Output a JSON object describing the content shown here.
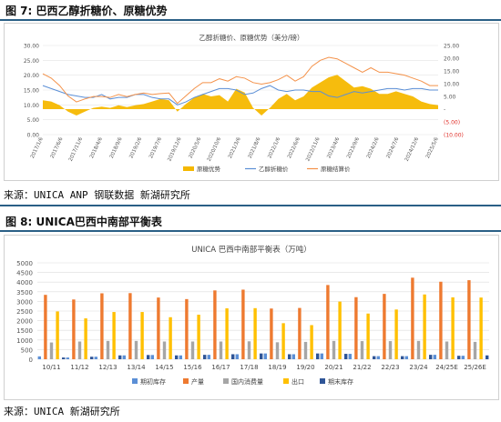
{
  "fig7": {
    "caption": "图 7: 巴西乙醇折糖价、原糖优势",
    "source": "来源：UNICA ANP 钢联数据 新湖研究所",
    "chart_data": {
      "type": "area+line",
      "title": "乙醇折糖价、原糖优势（美分/磅）",
      "x_ticks": [
        "2017/1/6",
        "2017/6/6",
        "2017/11/6",
        "2018/4/6",
        "2018/9/6",
        "2019/2/6",
        "2019/7/6",
        "2019/12/6",
        "2020/5/6",
        "2020/10/6",
        "2021/3/6",
        "2021/8/6",
        "2022/1/6",
        "2022/6/6",
        "2022/11/6",
        "2023/4/6",
        "2023/9/6",
        "2024/2/6",
        "2024/7/6",
        "2024/12/6",
        "2025/5/6"
      ],
      "left_ticks": [
        "0.00",
        "5.00",
        "10.00",
        "15.00",
        "20.00",
        "25.00",
        "30.00"
      ],
      "right_ticks": [
        "25.00",
        "20.00",
        "15.00",
        "10.00",
        "5.00",
        "-",
        "(5.00)",
        "(10.00)"
      ],
      "left_range": [
        0,
        30
      ],
      "right_range": [
        -10,
        25
      ],
      "series": [
        {
          "name": "原糖优势",
          "color": "#f5b800",
          "axis": "right",
          "values": [
            3.5,
            3.0,
            1.5,
            -1.0,
            -2.5,
            -1.0,
            0.5,
            1.0,
            0.5,
            1.5,
            0.8,
            1.5,
            2.0,
            3.0,
            4.0,
            3.5,
            -1.0,
            2.0,
            4.5,
            6.0,
            5.0,
            5.5,
            3.0,
            8.0,
            6.5,
            0.5,
            -2.5,
            0.5,
            4.0,
            6.0,
            3.5,
            5.0,
            8.5,
            10.5,
            12.5,
            13.5,
            11.0,
            8.5,
            9.0,
            8.0,
            6.0,
            6.0,
            7.0,
            6.0,
            5.0,
            3.0,
            2.0,
            1.5
          ]
        },
        {
          "name": "乙醇折糖价",
          "color": "#5b8fd6",
          "axis": "left",
          "values": [
            16.5,
            15.5,
            14.5,
            13.5,
            13.0,
            12.5,
            12.5,
            13.5,
            12.0,
            12.5,
            12.5,
            13.5,
            13.5,
            12.5,
            12.0,
            12.0,
            10.0,
            11.0,
            12.5,
            13.5,
            14.5,
            15.5,
            15.5,
            15.0,
            13.5,
            14.0,
            15.5,
            16.5,
            15.0,
            14.5,
            15.0,
            15.0,
            14.5,
            14.5,
            13.0,
            12.5,
            13.5,
            14.5,
            14.0,
            14.5,
            15.0,
            15.5,
            15.5,
            15.0,
            15.5,
            15.5,
            15.0,
            15.0
          ]
        },
        {
          "name": "原糖结算价",
          "color": "#f4924a",
          "axis": "left",
          "values": [
            20.5,
            19.0,
            16.5,
            13.0,
            11.0,
            12.0,
            12.8,
            12.8,
            12.5,
            13.5,
            12.8,
            13.5,
            14.0,
            13.5,
            13.8,
            14.0,
            10.5,
            13.0,
            15.5,
            17.5,
            17.5,
            18.8,
            18.0,
            19.5,
            19.0,
            17.5,
            17.0,
            17.5,
            18.5,
            20.0,
            18.0,
            19.5,
            23.0,
            25.0,
            26.0,
            25.5,
            24.0,
            22.5,
            21.0,
            22.5,
            21.0,
            21.0,
            20.5,
            20.0,
            19.0,
            18.0,
            16.5,
            16.5
          ]
        }
      ]
    }
  },
  "fig8": {
    "caption": "图 8: UNICA巴西中南部平衡表",
    "source": "来源：UNICA 新湖研究所",
    "chart_data": {
      "type": "bar",
      "title": "UNICA 巴西中南部平衡表（万吨）",
      "categories": [
        "10/11",
        "11/12",
        "12/13",
        "13/14",
        "14/15",
        "15/16",
        "16/17",
        "17/18",
        "18/19",
        "19/20",
        "20/21",
        "21/22",
        "22/23",
        "23/24",
        "24/25E",
        "25/26E"
      ],
      "y_ticks": [
        "0",
        "500",
        "1000",
        "1500",
        "2000",
        "2500",
        "3000",
        "3500",
        "4000",
        "4500",
        "5000"
      ],
      "ylim": [
        0,
        5000
      ],
      "series": [
        {
          "name": "期初库存",
          "color": "#5b8fd6",
          "values": [
            150,
            90,
            130,
            200,
            220,
            200,
            230,
            260,
            300,
            260,
            300,
            280,
            160,
            160,
            230,
            180
          ]
        },
        {
          "name": "产量",
          "color": "#ee7a30",
          "values": [
            3340,
            3100,
            3420,
            3430,
            3200,
            3120,
            3570,
            3610,
            2630,
            2660,
            3850,
            3220,
            3390,
            4230,
            4020,
            4100
          ]
        },
        {
          "name": "国内消费量",
          "color": "#a6a6a6",
          "values": [
            870,
            920,
            950,
            950,
            920,
            920,
            920,
            930,
            880,
            900,
            950,
            940,
            940,
            950,
            920,
            900
          ]
        },
        {
          "name": "出口",
          "color": "#ffc000",
          "values": [
            2480,
            2120,
            2450,
            2450,
            2180,
            2310,
            2640,
            2650,
            1870,
            1770,
            2990,
            2370,
            2580,
            3360,
            3210,
            3200
          ]
        },
        {
          "name": "期末库存",
          "color": "#2f5597",
          "values": [
            90,
            130,
            200,
            220,
            200,
            230,
            260,
            300,
            260,
            300,
            280,
            160,
            160,
            230,
            180,
            200
          ]
        }
      ]
    }
  }
}
